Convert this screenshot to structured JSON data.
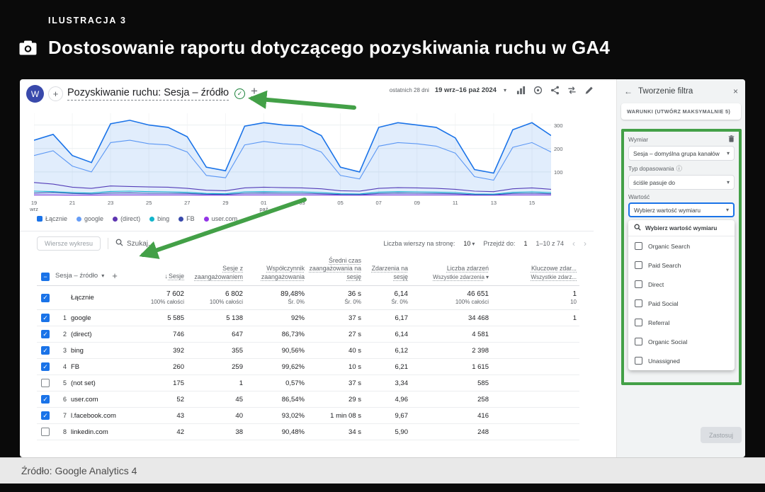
{
  "colors": {
    "accent_green": "#43a047",
    "ga_blue": "#1a73e8",
    "avatar_bg": "#3949ab"
  },
  "icons": {
    "back": "←",
    "close": "×",
    "info": "ⓘ",
    "caret": "▾",
    "plus": "+",
    "minus": "−",
    "check": "✓",
    "sort_desc": "↓",
    "prev": "‹",
    "next": "›"
  },
  "figure": {
    "label": "ILUSTRACJA 3",
    "title": "Dostosowanie raportu dotyczącego pozyskiwania ruchu w GA4",
    "source": "Źródło: Google Analytics 4"
  },
  "ga_header": {
    "avatar": "W",
    "title": "Pozyskiwanie ruchu: Sesja – źródło",
    "date_label": "ostatnich 28 dni",
    "date_range": "19 wrz–16 paź 2024"
  },
  "toolbar": {
    "rows_button": "Wiersze wykresu",
    "search_placeholder": "Szukaj...",
    "rows_per_page_label": "Liczba wierszy na stronę:",
    "rows_per_page_value": "10",
    "goto_label": "Przejdź do:",
    "goto_value": "1",
    "range": "1–10 z 74"
  },
  "table": {
    "dimension": "Sesja – źródło",
    "columns": [
      {
        "label": "Sesje"
      },
      {
        "label": "Sesje z zaangażowaniem"
      },
      {
        "label": "Współczynnik zaangażowania"
      },
      {
        "label": "Średni czas zaangażowania na sesję"
      },
      {
        "label": "Zdarzenia na sesję"
      },
      {
        "label": "Liczba zdarzeń",
        "sub": "Wszystkie zdarzenia"
      },
      {
        "label": "Kluczowe zdar...",
        "sub": "Wszystkie zdarz..."
      }
    ],
    "totals": {
      "label": "Łącznie",
      "values": [
        "7 602",
        "6 802",
        "89,48%",
        "36 s",
        "6,14",
        "46 651",
        "1"
      ],
      "subs": [
        "100% całości",
        "100% całości",
        "Śr. 0%",
        "Śr. 0%",
        "Śr. 0%",
        "100% całości",
        "10"
      ]
    },
    "rows": [
      {
        "num": "1",
        "source": "google",
        "checked": true,
        "values": [
          "5 585",
          "5 138",
          "92%",
          "37 s",
          "6,17",
          "34 468",
          "1"
        ]
      },
      {
        "num": "2",
        "source": "(direct)",
        "checked": true,
        "values": [
          "746",
          "647",
          "86,73%",
          "27 s",
          "6,14",
          "4 581",
          ""
        ]
      },
      {
        "num": "3",
        "source": "bing",
        "checked": true,
        "values": [
          "392",
          "355",
          "90,56%",
          "40 s",
          "6,12",
          "2 398",
          ""
        ]
      },
      {
        "num": "4",
        "source": "FB",
        "checked": true,
        "values": [
          "260",
          "259",
          "99,62%",
          "10 s",
          "6,21",
          "1 615",
          ""
        ]
      },
      {
        "num": "5",
        "source": "(not set)",
        "checked": false,
        "values": [
          "175",
          "1",
          "0,57%",
          "37 s",
          "3,34",
          "585",
          ""
        ]
      },
      {
        "num": "6",
        "source": "user.com",
        "checked": true,
        "values": [
          "52",
          "45",
          "86,54%",
          "29 s",
          "4,96",
          "258",
          ""
        ]
      },
      {
        "num": "7",
        "source": "l.facebook.com",
        "checked": true,
        "values": [
          "43",
          "40",
          "93,02%",
          "1 min 08 s",
          "9,67",
          "416",
          ""
        ]
      },
      {
        "num": "8",
        "source": "linkedin.com",
        "checked": false,
        "values": [
          "42",
          "38",
          "90,48%",
          "34 s",
          "5,90",
          "248",
          ""
        ]
      }
    ]
  },
  "filter_panel": {
    "title": "Tworzenie filtra",
    "conditions_header": "WARUNKI (UTWÓRZ MAKSYMALNIE 5)",
    "dimension_label": "Wymiar",
    "dimension_value": "Sesja – domyślna grupa kanałów",
    "match_label": "Typ dopasowania",
    "match_value": "ściśle pasuje do",
    "value_label": "Wartość",
    "value_dropdown": "Wybierz wartość wymiaru",
    "value_search_placeholder": "Wybierz wartość wymiaru",
    "options": [
      "Organic Search",
      "Paid Search",
      "Direct",
      "Paid Social",
      "Referral",
      "Organic Social",
      "Unassigned"
    ],
    "apply": "Zastosuj"
  },
  "chart_data": {
    "type": "line",
    "title": "",
    "xlabel": "",
    "ylabel": "",
    "ylim": [
      0,
      350
    ],
    "yticks": [
      100,
      200,
      300
    ],
    "tick_every": 2,
    "legend_position": "bottom",
    "grid": true,
    "x": [
      "19 wrz",
      "20",
      "21",
      "22",
      "23",
      "24",
      "25",
      "26",
      "27",
      "28",
      "29",
      "30",
      "01 paź",
      "02",
      "03",
      "04",
      "05",
      "06",
      "07",
      "08",
      "09",
      "10",
      "11",
      "12",
      "13",
      "14",
      "15",
      "16"
    ],
    "series": [
      {
        "name": "Łącznie",
        "color": "#1a73e8",
        "area": true,
        "values": [
          235,
          260,
          170,
          140,
          305,
          320,
          300,
          290,
          250,
          120,
          105,
          295,
          310,
          300,
          295,
          255,
          120,
          100,
          290,
          310,
          300,
          290,
          245,
          110,
          95,
          280,
          310,
          255
        ]
      },
      {
        "name": "google",
        "color": "#669df6",
        "area": false,
        "values": [
          170,
          190,
          125,
          100,
          225,
          235,
          220,
          215,
          185,
          85,
          75,
          215,
          230,
          220,
          215,
          185,
          85,
          70,
          210,
          225,
          220,
          210,
          180,
          80,
          65,
          205,
          225,
          185
        ]
      },
      {
        "name": "(direct)",
        "color": "#5e35b1",
        "area": false,
        "values": [
          55,
          48,
          35,
          30,
          40,
          38,
          36,
          35,
          30,
          22,
          20,
          32,
          35,
          33,
          32,
          28,
          20,
          18,
          30,
          33,
          32,
          30,
          26,
          18,
          16,
          28,
          32,
          26
        ]
      },
      {
        "name": "bing",
        "color": "#12b5cb",
        "area": false,
        "values": [
          18,
          16,
          12,
          10,
          17,
          18,
          16,
          15,
          13,
          8,
          7,
          15,
          16,
          15,
          15,
          12,
          7,
          6,
          14,
          16,
          15,
          14,
          12,
          6,
          5,
          13,
          15,
          12
        ]
      },
      {
        "name": "FB",
        "color": "#3949ab",
        "area": false,
        "values": [
          10,
          12,
          8,
          6,
          10,
          11,
          9,
          9,
          8,
          5,
          4,
          9,
          10,
          9,
          9,
          7,
          4,
          3,
          8,
          10,
          9,
          8,
          7,
          3,
          3,
          8,
          9,
          7
        ]
      },
      {
        "name": "user.com",
        "color": "#9334e6",
        "area": false,
        "values": [
          2,
          2,
          1,
          1,
          2,
          2,
          2,
          2,
          2,
          1,
          1,
          2,
          2,
          2,
          2,
          2,
          1,
          1,
          2,
          2,
          2,
          2,
          2,
          1,
          1,
          2,
          2,
          2
        ]
      }
    ]
  }
}
